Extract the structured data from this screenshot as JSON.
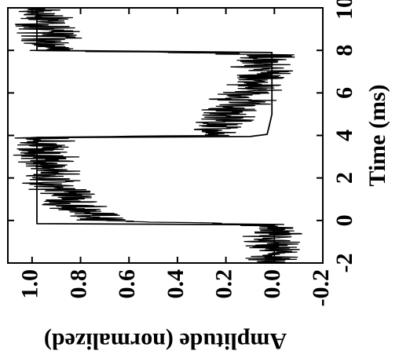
{
  "chart_data": {
    "type": "line",
    "orientation": "rotated-90-ccw",
    "title": "",
    "xlabel": "Time (ms)",
    "ylabel": "Amplitude (normalized)",
    "xlim": [
      -2,
      10
    ],
    "ylim": [
      -0.2,
      1.1
    ],
    "x_ticks": [
      -2,
      0,
      2,
      4,
      6,
      8,
      10
    ],
    "x_tick_labels": [
      "-2",
      "0",
      "2",
      "4",
      "6",
      "8",
      "10"
    ],
    "y_ticks": [
      -0.2,
      0.0,
      0.2,
      0.4,
      0.6,
      0.8,
      1.0
    ],
    "y_tick_labels": [
      "-0.2",
      "0.0",
      "0.2",
      "0.4",
      "0.6",
      "0.8",
      "1.0"
    ],
    "grid": false,
    "legend": "none",
    "series": [
      {
        "style": "noisy",
        "x": [
          -2.0,
          -1.5,
          -1.0,
          -0.5,
          -0.2,
          0.0,
          0.5,
          1.0,
          1.5,
          2.0,
          2.5,
          3.0,
          3.5,
          3.9,
          4.0,
          4.5,
          5.0,
          5.5,
          6.0,
          6.5,
          7.0,
          7.5,
          7.8,
          8.0,
          8.5,
          9.0,
          9.5,
          10.0
        ],
        "y": [
          0.0,
          -0.01,
          0.02,
          0.0,
          0.01,
          0.7,
          0.8,
          0.86,
          0.9,
          0.92,
          0.93,
          0.93,
          0.94,
          0.95,
          0.3,
          0.25,
          0.2,
          0.15,
          0.1,
          0.07,
          0.05,
          0.03,
          0.02,
          0.92,
          0.93,
          0.94,
          0.95,
          0.95
        ]
      },
      {
        "style": "smooth",
        "x": [
          -2.0,
          -0.2,
          -0.15,
          0.0,
          3.9,
          3.95,
          4.05,
          4.5,
          5.0,
          6.0,
          7.0,
          7.9,
          8.0,
          8.05,
          10.0
        ],
        "y": [
          0.0,
          0.0,
          0.98,
          0.98,
          0.98,
          0.1,
          0.03,
          0.02,
          0.01,
          0.01,
          0.01,
          0.01,
          0.98,
          0.98,
          0.98
        ]
      }
    ]
  }
}
